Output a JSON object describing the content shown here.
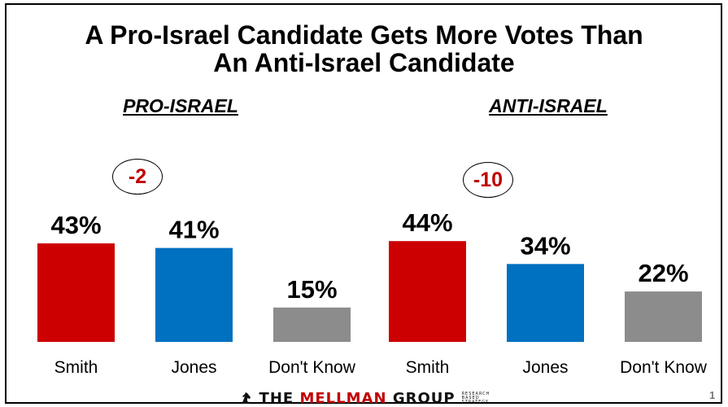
{
  "title_line1": "A Pro-Israel Candidate Gets More Votes Than",
  "title_line2": "An Anti-Israel Candidate",
  "chart_data": {
    "type": "bar",
    "title": "A Pro-Israel Candidate Gets More Votes Than An Anti-Israel Candidate",
    "xlabel": "",
    "ylabel": "",
    "ylim": [
      0,
      50
    ],
    "grid": false,
    "groups": [
      {
        "label": "PRO-ISRAEL",
        "difference_label": "-2",
        "categories": [
          "Smith",
          "Jones",
          "Don't Know"
        ],
        "values": [
          43,
          41,
          15
        ],
        "value_labels": [
          "43%",
          "41%",
          "15%"
        ],
        "colors": [
          "#cc0000",
          "#0070c0",
          "#8c8c8c"
        ]
      },
      {
        "label": "ANTI-ISRAEL",
        "difference_label": "-10",
        "categories": [
          "Smith",
          "Jones",
          "Don't Know"
        ],
        "values": [
          44,
          34,
          22
        ],
        "value_labels": [
          "44%",
          "34%",
          "22%"
        ],
        "colors": [
          "#cc0000",
          "#0070c0",
          "#8c8c8c"
        ]
      }
    ]
  },
  "footer": {
    "logo_word1": "THE",
    "logo_word2": "MELLMAN",
    "logo_word3": "GROUP",
    "logo_tagline": [
      "RESEARCH",
      "BASED",
      "STRATEGY"
    ],
    "page_number": "1"
  }
}
